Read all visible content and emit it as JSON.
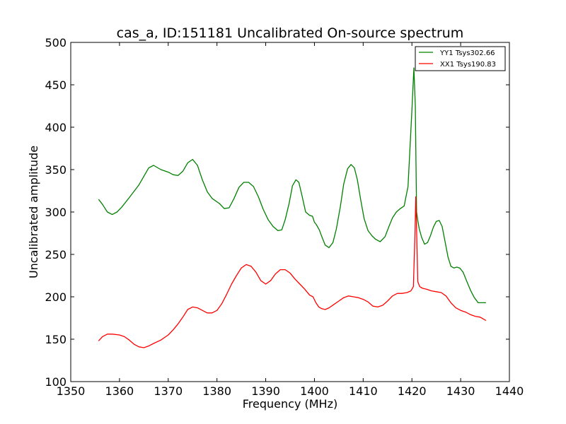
{
  "chart_data": {
    "type": "line",
    "title": "cas_a, ID:151181 Uncalibrated On-source spectrum",
    "xlabel": "Frequency (MHz)",
    "ylabel": "Uncalibrated amplitude",
    "xlim": [
      1350,
      1440
    ],
    "ylim": [
      100,
      500
    ],
    "xticks": [
      1350,
      1360,
      1370,
      1380,
      1390,
      1400,
      1410,
      1420,
      1430,
      1440
    ],
    "yticks": [
      100,
      150,
      200,
      250,
      300,
      350,
      400,
      450,
      500
    ],
    "legend_position": "top-right",
    "series": [
      {
        "name": "YY1 Tsys302.66",
        "color": "#008000",
        "x": [
          1355.7,
          1356.5,
          1357.5,
          1358.5,
          1359.5,
          1360.5,
          1362,
          1364,
          1365,
          1366,
          1367,
          1368.5,
          1370,
          1371,
          1372,
          1373,
          1374,
          1375,
          1376,
          1377,
          1378,
          1379,
          1380.5,
          1381.5,
          1382.5,
          1383.5,
          1384.5,
          1385.5,
          1386.5,
          1387.5,
          1388.5,
          1389.5,
          1390.5,
          1391.5,
          1392.5,
          1393.3,
          1394,
          1394.8,
          1395.5,
          1396.2,
          1396.8,
          1397.5,
          1398.2,
          1399,
          1399.6,
          1400,
          1400.4,
          1401,
          1401.5,
          1402.2,
          1403,
          1403.8,
          1404.5,
          1405.3,
          1406,
          1406.8,
          1407.5,
          1408.2,
          1408.8,
          1409.5,
          1410.2,
          1411,
          1411.8,
          1412.5,
          1413.5,
          1414.5,
          1415.3,
          1416,
          1416.8,
          1417.6,
          1418.4,
          1419.2,
          1420,
          1420.4,
          1420.7,
          1420.95,
          1421.2,
          1421.5,
          1422,
          1422.6,
          1423.2,
          1423.8,
          1424.4,
          1425,
          1425.6,
          1426.2,
          1426.8,
          1427.4,
          1428,
          1428.6,
          1429.2,
          1429.8,
          1430.5,
          1431.2,
          1432,
          1432.8,
          1433.6,
          1434.4,
          1435.2
        ],
        "y": [
          315,
          309,
          300,
          297,
          300,
          306,
          317,
          332,
          342,
          352,
          355,
          350,
          347,
          344,
          343,
          348,
          358,
          362,
          355,
          338,
          324,
          316,
          310,
          304,
          305,
          316,
          329,
          335,
          335,
          330,
          318,
          303,
          291,
          283,
          278,
          279,
          291,
          310,
          331,
          338,
          335,
          318,
          300,
          296,
          295,
          288,
          285,
          279,
          271,
          261,
          258,
          264,
          280,
          306,
          333,
          351,
          356,
          352,
          338,
          314,
          292,
          278,
          272,
          268,
          265,
          271,
          283,
          293,
          300,
          304,
          307,
          330,
          420,
          470,
          425,
          300,
          290,
          280,
          270,
          262,
          264,
          272,
          282,
          289,
          290,
          283,
          265,
          247,
          236,
          234,
          235,
          234,
          229,
          219,
          208,
          199,
          193,
          193,
          193
        ]
      },
      {
        "name": "XX1 Tsys190.83",
        "color": "#ff0000",
        "x": [
          1355.7,
          1356.5,
          1357.5,
          1358.5,
          1360,
          1361,
          1362,
          1363,
          1364,
          1365,
          1366,
          1367,
          1368.5,
          1370,
          1371,
          1372,
          1373,
          1374,
          1375,
          1376,
          1377,
          1378,
          1379,
          1380,
          1381,
          1382,
          1383,
          1384,
          1385,
          1386,
          1387,
          1388,
          1389,
          1390,
          1391,
          1392,
          1393,
          1394,
          1395,
          1396,
          1397,
          1398,
          1399,
          1399.7,
          1400.3,
          1400.9,
          1401.5,
          1402.2,
          1403,
          1404,
          1405,
          1406,
          1407,
          1408,
          1409,
          1410,
          1411,
          1412,
          1413,
          1414,
          1415,
          1416,
          1417,
          1418,
          1419,
          1419.8,
          1420.3,
          1420.6,
          1420.8,
          1421.0,
          1421.2,
          1421.6,
          1422.2,
          1423,
          1424,
          1425,
          1426,
          1427,
          1428,
          1429,
          1430,
          1431,
          1432,
          1433,
          1434,
          1435.2
        ],
        "y": [
          148,
          153,
          156,
          156,
          155,
          153,
          149,
          144,
          141,
          140,
          142,
          145,
          149,
          155,
          161,
          168,
          176,
          185,
          188,
          187,
          184,
          181,
          181,
          184,
          192,
          203,
          215,
          225,
          234,
          238,
          236,
          229,
          219,
          215,
          219,
          227,
          232,
          232,
          228,
          221,
          215,
          209,
          202,
          200,
          193,
          188,
          186,
          185,
          187,
          191,
          195,
          199,
          201,
          200,
          199,
          197,
          194,
          189,
          188,
          190,
          195,
          201,
          204,
          204,
          205,
          207,
          212,
          270,
          318,
          270,
          218,
          212,
          210,
          209,
          207,
          206,
          205,
          201,
          193,
          187,
          184,
          182,
          179,
          177,
          176,
          172
        ]
      }
    ]
  }
}
